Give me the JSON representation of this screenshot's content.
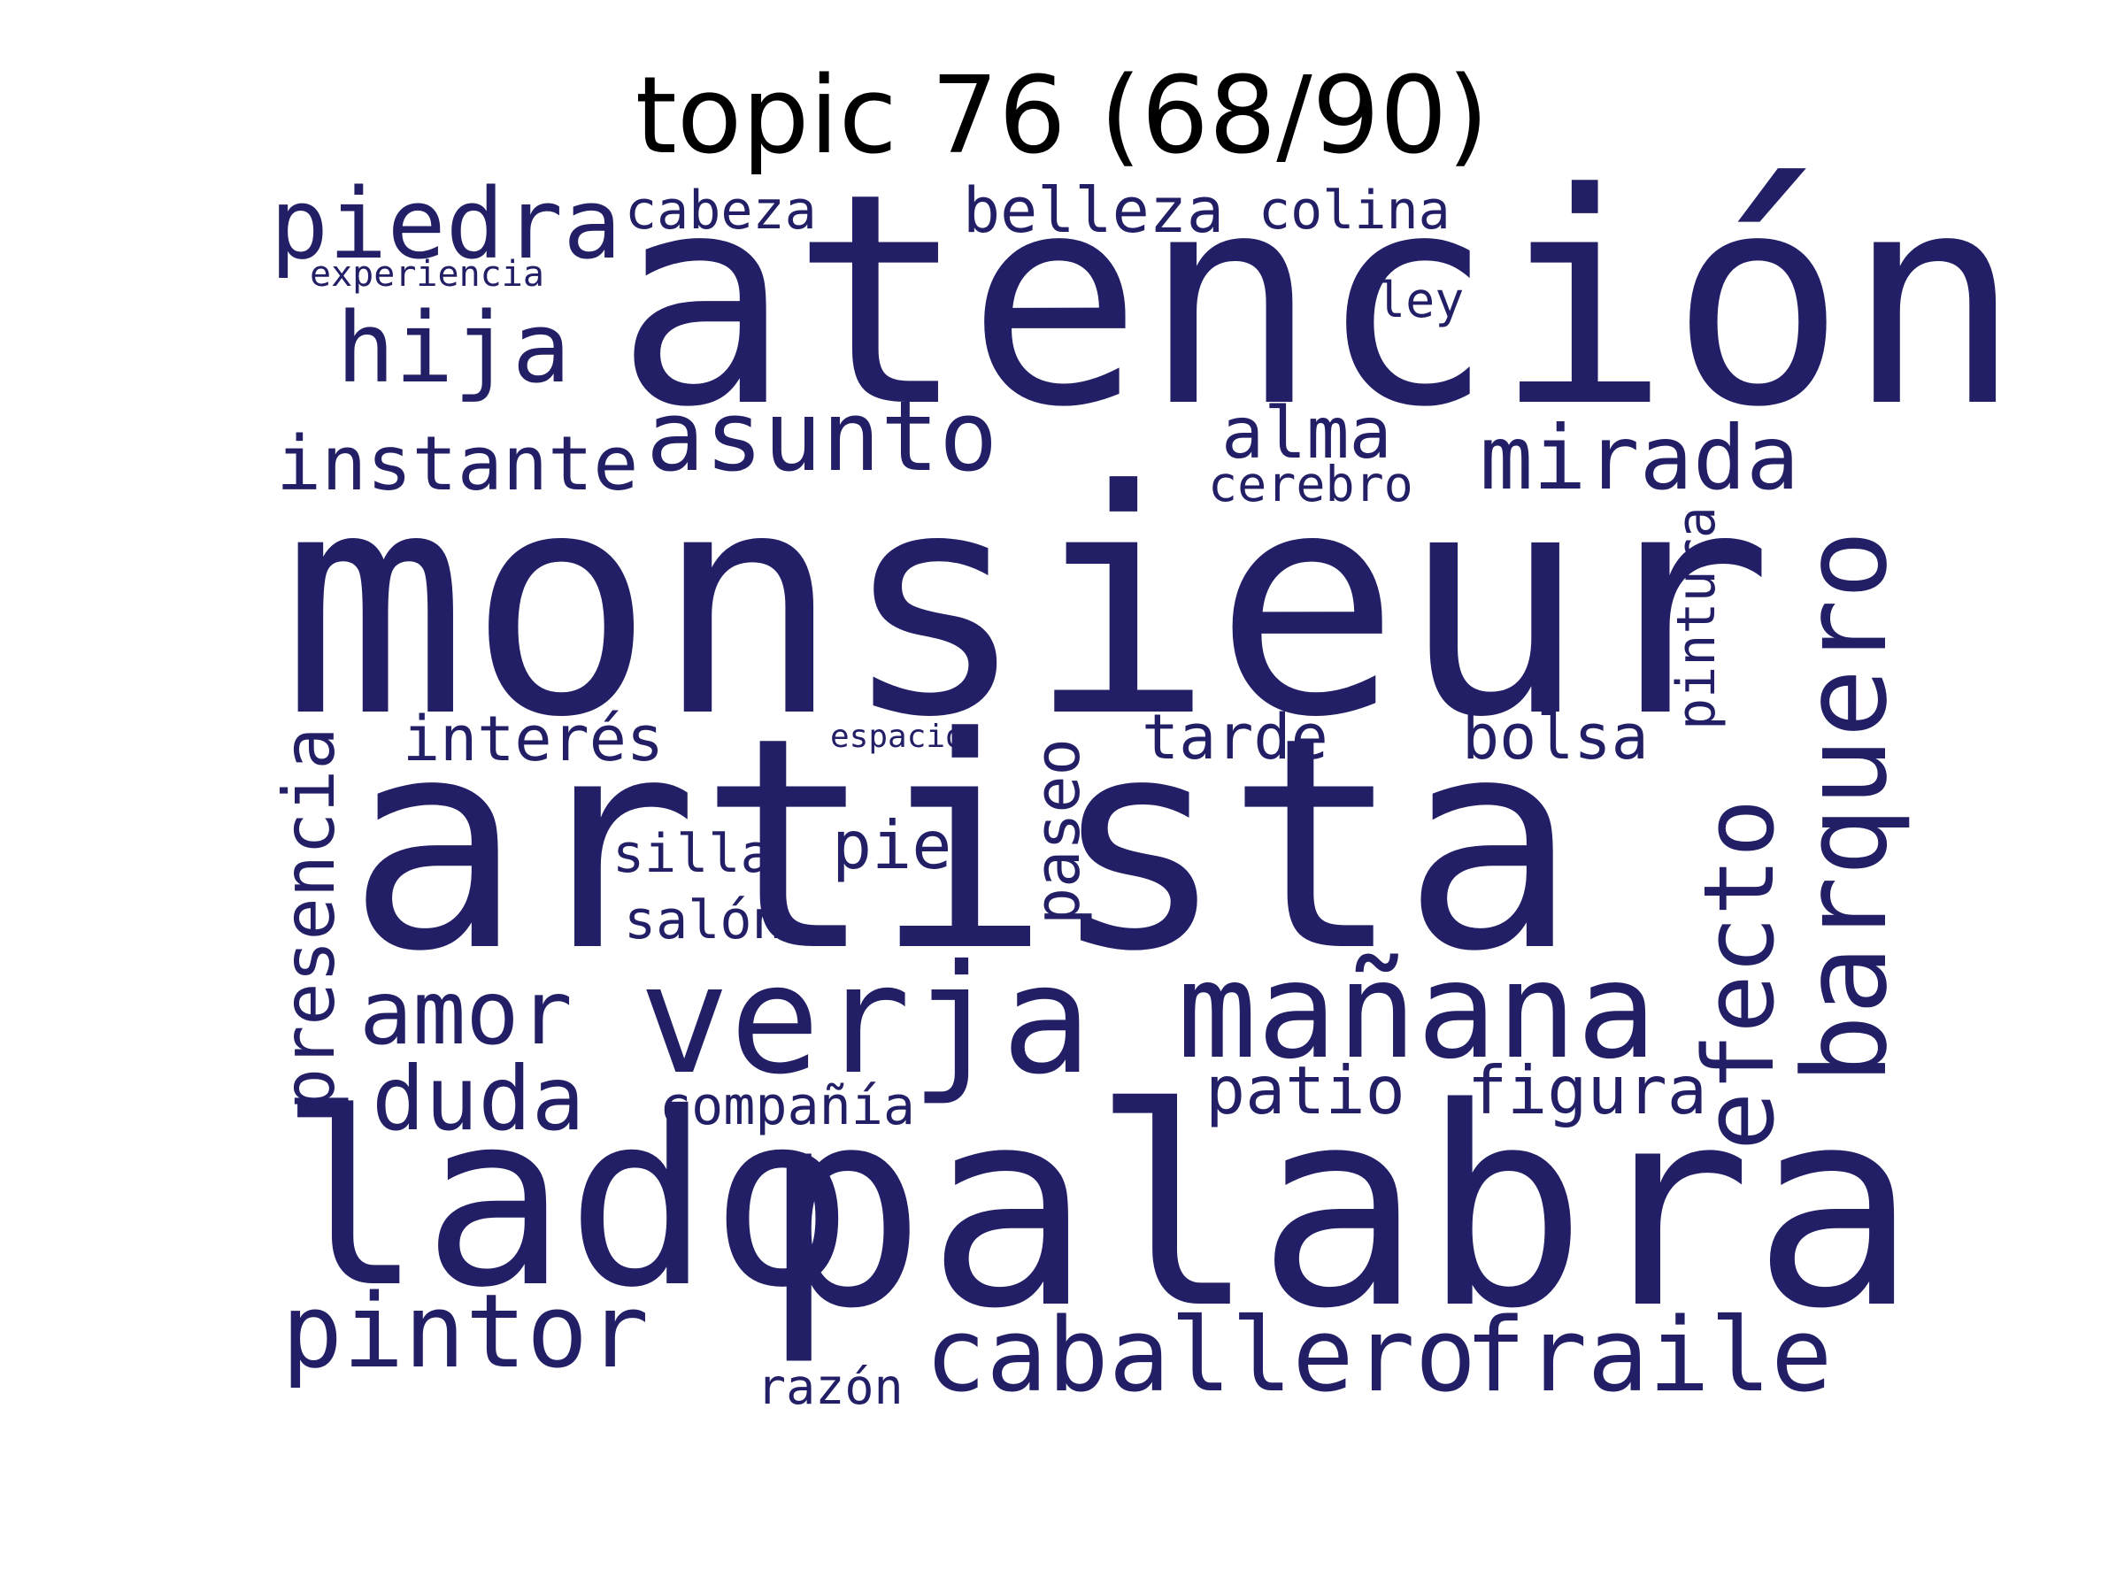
{
  "title": "topic 76 (68/90)",
  "colors": {
    "word": "#221f66",
    "title": "#000000",
    "background": "#ffffff"
  },
  "words": [
    "monsieur",
    "artista",
    "atención",
    "palabra",
    "lado",
    "verja",
    "mañana",
    "barquero",
    "efecto",
    "caballero",
    "fraile",
    "pintor",
    "piedra",
    "hija",
    "asunto",
    "mirada",
    "instante",
    "amor",
    "duda",
    "presencia",
    "belleza",
    "cabeza",
    "colina",
    "alma",
    "interés",
    "tarde",
    "bolsa",
    "pie",
    "paseo",
    "patio",
    "figura",
    "compañía",
    "silla",
    "salón",
    "cerebro",
    "pintura",
    "ley",
    "razón",
    "experiencia",
    "espacio"
  ]
}
